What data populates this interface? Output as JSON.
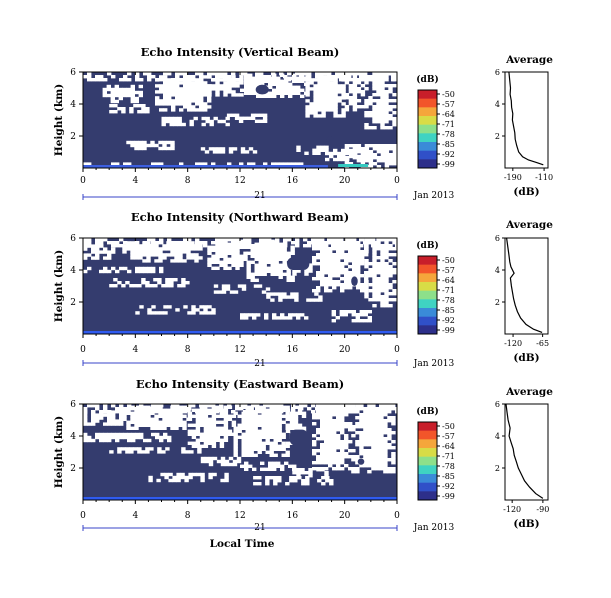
{
  "figure": {
    "xlabel": "Local Time",
    "date_label": "Jan 2013",
    "day_label": "21"
  },
  "chart_data": [
    {
      "type": "heatmap",
      "title": "Echo Intensity (Vertical Beam)",
      "ylabel": "Height (km)",
      "xlabel": "Local Time",
      "x_ticks": [
        "0",
        "4",
        "8",
        "12",
        "16",
        "20",
        "0"
      ],
      "y_ticks": [
        "6",
        "4",
        "2"
      ],
      "xlim": [
        0,
        24
      ],
      "ylim": [
        0,
        6
      ],
      "colorbar": {
        "unit": "(dB)",
        "ticks": [
          "-50",
          "-57",
          "-64",
          "-71",
          "-78",
          "-85",
          "-92",
          "-99"
        ]
      },
      "profile": {
        "title": "Average",
        "xlabel": "(dB)",
        "x_ticks": [
          "-190",
          "-110"
        ],
        "xlim": [
          -210,
          -100
        ],
        "y_ticks": [
          "6",
          "4",
          "2"
        ],
        "points": [
          [
            -200,
            6.0
          ],
          [
            -198,
            5.5
          ],
          [
            -196,
            5.0
          ],
          [
            -197,
            4.6
          ],
          [
            -194,
            4.2
          ],
          [
            -193,
            3.8
          ],
          [
            -190,
            3.4
          ],
          [
            -191,
            3.0
          ],
          [
            -188,
            2.6
          ],
          [
            -185,
            2.2
          ],
          [
            -184,
            1.8
          ],
          [
            -180,
            1.4
          ],
          [
            -175,
            1.0
          ],
          [
            -165,
            0.7
          ],
          [
            -150,
            0.5
          ],
          [
            -130,
            0.35
          ],
          [
            -112,
            0.2
          ]
        ]
      }
    },
    {
      "type": "heatmap",
      "title": "Echo Intensity (Northward Beam)",
      "ylabel": "Height (km)",
      "xlabel": "Local Time",
      "x_ticks": [
        "0",
        "4",
        "8",
        "12",
        "16",
        "20",
        "0"
      ],
      "y_ticks": [
        "6",
        "4",
        "2"
      ],
      "xlim": [
        0,
        24
      ],
      "ylim": [
        0,
        6
      ],
      "colorbar": {
        "unit": "(dB)",
        "ticks": [
          "-50",
          "-57",
          "-64",
          "-71",
          "-78",
          "-85",
          "-92",
          "-99"
        ]
      },
      "profile": {
        "title": "Average",
        "xlabel": "(dB)",
        "x_ticks": [
          "-120",
          "-65"
        ],
        "xlim": [
          -135,
          -55
        ],
        "y_ticks": [
          "6",
          "4",
          "2"
        ],
        "points": [
          [
            -132,
            6.0
          ],
          [
            -130,
            5.5
          ],
          [
            -128,
            5.0
          ],
          [
            -126,
            4.5
          ],
          [
            -124,
            4.2
          ],
          [
            -118,
            3.8
          ],
          [
            -125,
            3.5
          ],
          [
            -123,
            3.0
          ],
          [
            -121,
            2.6
          ],
          [
            -119,
            2.2
          ],
          [
            -116,
            1.8
          ],
          [
            -112,
            1.4
          ],
          [
            -106,
            1.0
          ],
          [
            -96,
            0.6
          ],
          [
            -82,
            0.3
          ],
          [
            -66,
            0.1
          ]
        ]
      }
    },
    {
      "type": "heatmap",
      "title": "Echo Intensity (Eastward Beam)",
      "ylabel": "Height (km)",
      "xlabel": "Local Time",
      "x_ticks": [
        "0",
        "4",
        "8",
        "12",
        "16",
        "20",
        "0"
      ],
      "y_ticks": [
        "6",
        "4",
        "2"
      ],
      "xlim": [
        0,
        24
      ],
      "ylim": [
        0,
        6
      ],
      "colorbar": {
        "unit": "(dB)",
        "ticks": [
          "-50",
          "-57",
          "-64",
          "-71",
          "-78",
          "-85",
          "-92",
          "-99"
        ]
      },
      "profile": {
        "title": "Average",
        "xlabel": "(dB)",
        "x_ticks": [
          "-120",
          "-90"
        ],
        "xlim": [
          -127,
          -85
        ],
        "y_ticks": [
          "6",
          "4",
          "2"
        ],
        "points": [
          [
            -126,
            6.0
          ],
          [
            -125,
            5.5
          ],
          [
            -124,
            5.0
          ],
          [
            -122,
            4.5
          ],
          [
            -123,
            4.0
          ],
          [
            -121,
            3.6
          ],
          [
            -119,
            3.2
          ],
          [
            -118,
            2.8
          ],
          [
            -116,
            2.4
          ],
          [
            -114,
            2.0
          ],
          [
            -111,
            1.6
          ],
          [
            -108,
            1.2
          ],
          [
            -103,
            0.8
          ],
          [
            -97,
            0.4
          ],
          [
            -90,
            0.1
          ]
        ]
      }
    }
  ]
}
